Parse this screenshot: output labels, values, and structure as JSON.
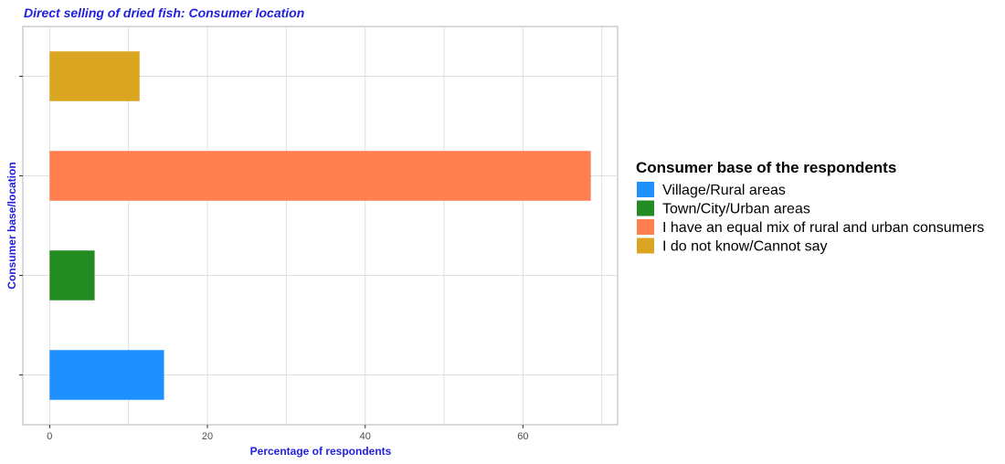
{
  "colors": {
    "title": "#1f1fe0",
    "grid": "#dedede",
    "panel_border": "#b3b3b3",
    "tick_text": "#4d4d4d"
  },
  "chart_data": {
    "type": "bar",
    "orientation": "horizontal",
    "title": "Direct selling of dried fish: Consumer location",
    "xlabel": "Percentage of respondents",
    "ylabel": "Consumer base/location",
    "xlim": [
      -3.4,
      72
    ],
    "x_ticks": [
      0,
      20,
      40,
      60
    ],
    "y_tick_labels_shown": false,
    "grid": true,
    "legend_position": "right",
    "legend_title": "Consumer base of the respondents",
    "categories": [
      "Village/Rural areas",
      "Town/City/Urban areas",
      "I have an equal mix of rural and urban consumers",
      "I do not know/Cannot say"
    ],
    "values": [
      14.5,
      5.7,
      68.6,
      11.4
    ],
    "colors": [
      "#1e90ff",
      "#228b22",
      "#ff7f50",
      "#daa520"
    ]
  }
}
